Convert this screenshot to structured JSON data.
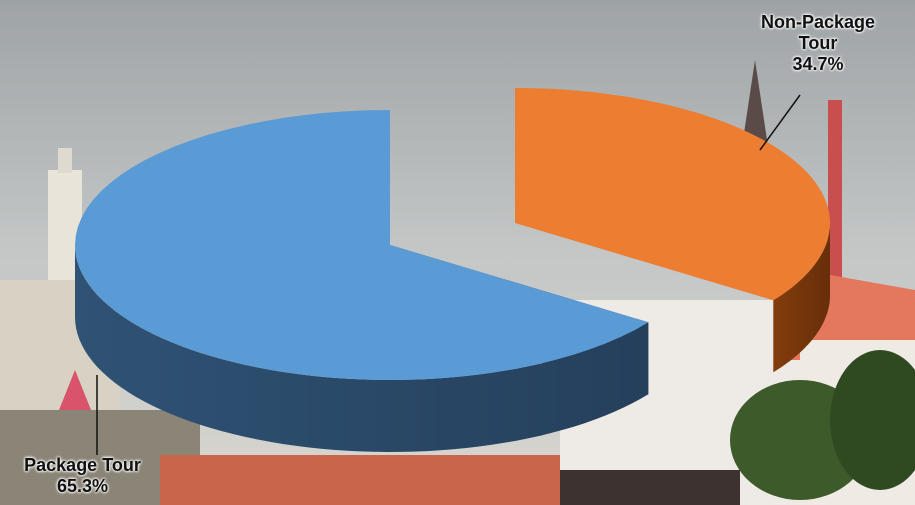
{
  "chart_data": {
    "type": "pie",
    "categories": [
      "Package Tour",
      "Non-Package Tour"
    ],
    "values": [
      65.3,
      34.7
    ],
    "value_labels": [
      "65.3%",
      "34.7%"
    ],
    "colors": [
      "#5b9bd5",
      "#ed7d31"
    ],
    "side_colors": [
      "#2f5275",
      "#843c0c"
    ],
    "exploded": [
      false,
      true
    ]
  }
}
